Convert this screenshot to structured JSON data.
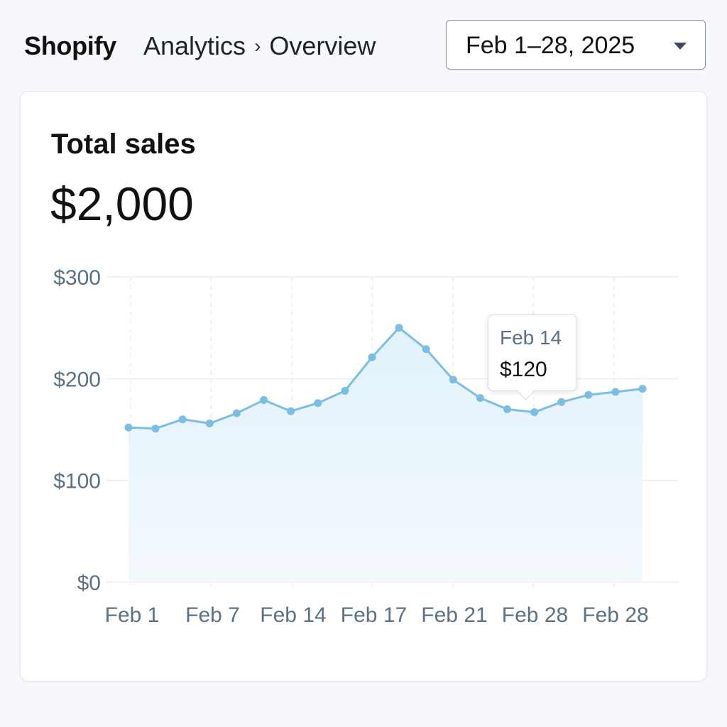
{
  "header": {
    "brand": "Shopify",
    "breadcrumb": {
      "section": "Analytics",
      "separator": "›",
      "page": "Overview"
    },
    "date_range": {
      "value": "Feb 1–28, 2025",
      "icon": "chevron-down-icon"
    }
  },
  "card": {
    "title": "Total sales",
    "value": "$2,000"
  },
  "tooltip": {
    "date": "Feb 14",
    "value": "$120"
  },
  "colors": {
    "line": "#7bbde3",
    "area": "#e4f3fb",
    "grid": "#e8edf2",
    "tick": "#5a7184"
  },
  "chart_data": {
    "type": "area",
    "title": "Total sales",
    "xlabel": "",
    "ylabel": "",
    "ylim": [
      0,
      300
    ],
    "grid": true,
    "y_ticks": [
      "$0",
      "$100",
      "$200",
      "$300"
    ],
    "x_ticks": [
      "Feb 1",
      "Feb 7",
      "Feb 14",
      "Feb 17",
      "Feb 21",
      "Feb 28",
      "Feb 28"
    ],
    "series": [
      {
        "values": [
          152,
          151,
          160,
          156,
          166,
          179,
          168,
          176,
          188,
          221,
          250,
          229,
          199,
          181,
          170,
          167,
          177,
          184,
          187,
          190
        ]
      }
    ]
  }
}
